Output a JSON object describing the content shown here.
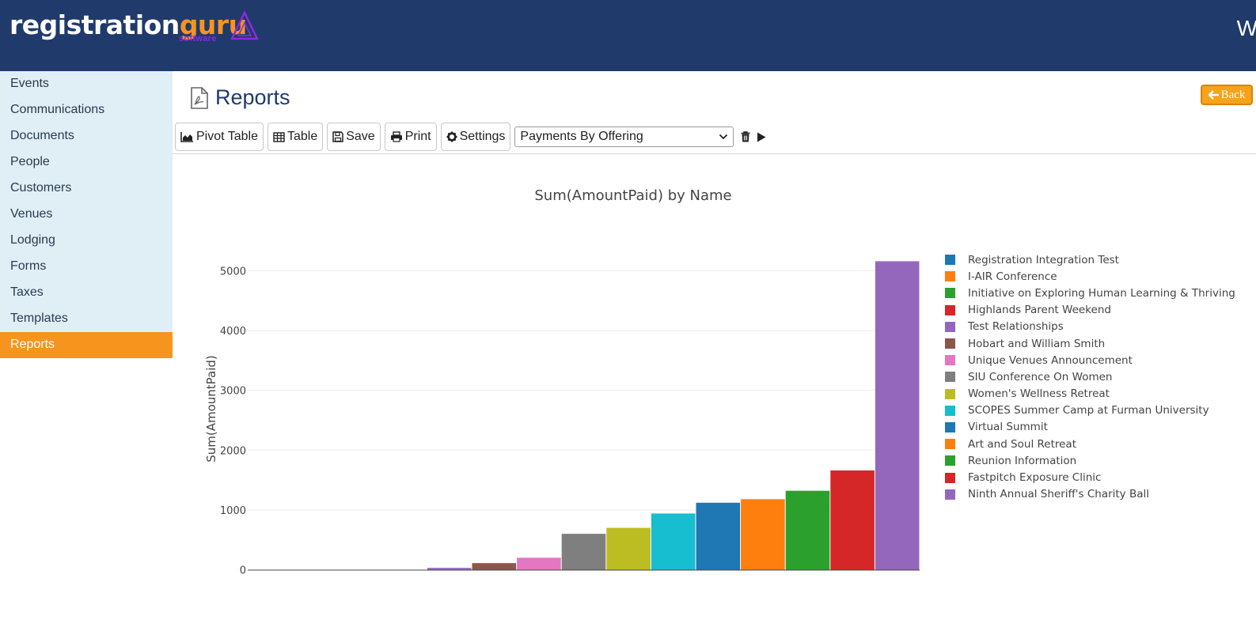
{
  "header": {
    "logo": {
      "part1": "registration",
      "part2": "guru",
      "sub": "software"
    },
    "user_initial": "W"
  },
  "sidebar": {
    "items": [
      {
        "label": "Events"
      },
      {
        "label": "Communications"
      },
      {
        "label": "Documents"
      },
      {
        "label": "People"
      },
      {
        "label": "Customers"
      },
      {
        "label": "Venues"
      },
      {
        "label": "Lodging"
      },
      {
        "label": "Forms"
      },
      {
        "label": "Taxes"
      },
      {
        "label": "Templates"
      },
      {
        "label": "Reports",
        "active": true
      }
    ]
  },
  "page": {
    "title": "Reports",
    "title_icon": "pdf-file-icon",
    "back_label": "Back"
  },
  "toolbar": {
    "pivot_label": "Pivot Table",
    "table_label": "Table",
    "save_label": "Save",
    "print_label": "Print",
    "settings_label": "Settings",
    "report_select": "Payments By Offering"
  },
  "colors": {
    "header_bg": "#1f3a6b",
    "accent": "#f7941d",
    "sidebar_bg": "#e0eef6"
  },
  "chart_data": {
    "type": "bar",
    "title": "Sum(AmountPaid) by Name",
    "xlabel": "",
    "ylabel": "Sum(AmountPaid)",
    "ylim": [
      0,
      5300
    ],
    "yticks": [
      0,
      1000,
      2000,
      3000,
      4000,
      5000
    ],
    "grid": true,
    "legend_position": "right",
    "categories": [
      "Registration Integration Test",
      "I-AIR Conference",
      "Initiative on Exploring Human Learning & Thriving",
      "Highlands Parent Weekend",
      "Test Relationships",
      "Hobart and William Smith",
      "Unique Venues Announcement",
      "SIU Conference On Women",
      "Women's Wellness Retreat",
      "SCOPES Summer Camp at Furman University",
      "Virtual Summit",
      "Art and Soul Retreat",
      "Reunion Information",
      "Fastpitch Exposure Clinic",
      "Ninth Annual Sheriff's Charity Ball"
    ],
    "values": [
      0,
      0,
      0,
      0,
      30,
      110,
      200,
      600,
      700,
      940,
      1120,
      1180,
      1320,
      1660,
      5160
    ],
    "colors": [
      "#1f77b4",
      "#ff7f0e",
      "#2ca02c",
      "#d62728",
      "#9467bd",
      "#8c564b",
      "#e377c2",
      "#7f7f7f",
      "#bcbd22",
      "#17becf",
      "#1f77b4",
      "#ff7f0e",
      "#2ca02c",
      "#d62728",
      "#9467bd"
    ]
  }
}
